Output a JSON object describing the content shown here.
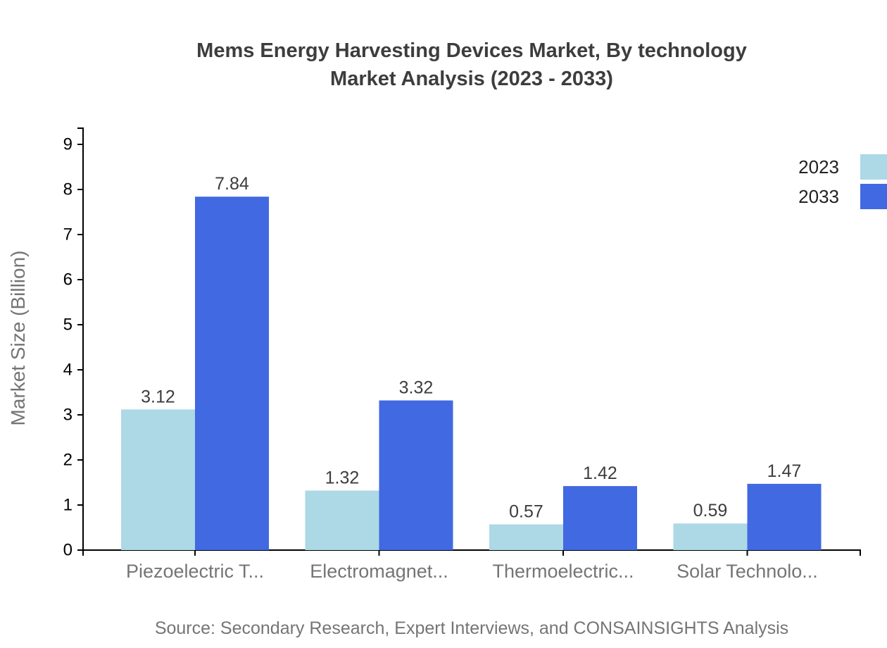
{
  "title": {
    "line1": "Mems Energy Harvesting Devices Market, By technology",
    "line2": "Market Analysis (2023 - 2033)"
  },
  "source": "Source: Secondary Research, Expert Interviews, and CONSAINSIGHTS Analysis",
  "legend": [
    {
      "label": "2023",
      "color": "#ADD8E6"
    },
    {
      "label": "2033",
      "color": "#4169E1"
    }
  ],
  "chart_data": {
    "type": "bar",
    "title": "Mems Energy Harvesting Devices Market, By technology Market Analysis (2023 - 2033)",
    "categories": [
      "Piezoelectric T...",
      "Electromagnet...",
      "Thermoelectric...",
      "Solar Technolo..."
    ],
    "series": [
      {
        "name": "2023",
        "color": "#ADD8E6",
        "values": [
          3.12,
          1.32,
          0.57,
          0.59
        ]
      },
      {
        "name": "2033",
        "color": "#4169E1",
        "values": [
          7.84,
          3.32,
          1.42,
          1.47
        ]
      }
    ],
    "xlabel": "",
    "ylabel": "Market Size (Billion)",
    "ylim": [
      0,
      9
    ],
    "yticks": [
      0,
      1,
      2,
      3,
      4,
      5,
      6,
      7,
      8,
      9
    ],
    "grid": false,
    "value_labels": true,
    "value_label_format": "2-decimals",
    "legend_position": "top-right"
  },
  "colors": {
    "axis_line": "#000000",
    "y_tick_label": "#000000",
    "category_label": "#757575",
    "value_label": "#3d3d3d",
    "y_axis_title": "#757575",
    "title_text": "#3d3d3d",
    "source_text": "#757575",
    "background": "#ffffff"
  }
}
